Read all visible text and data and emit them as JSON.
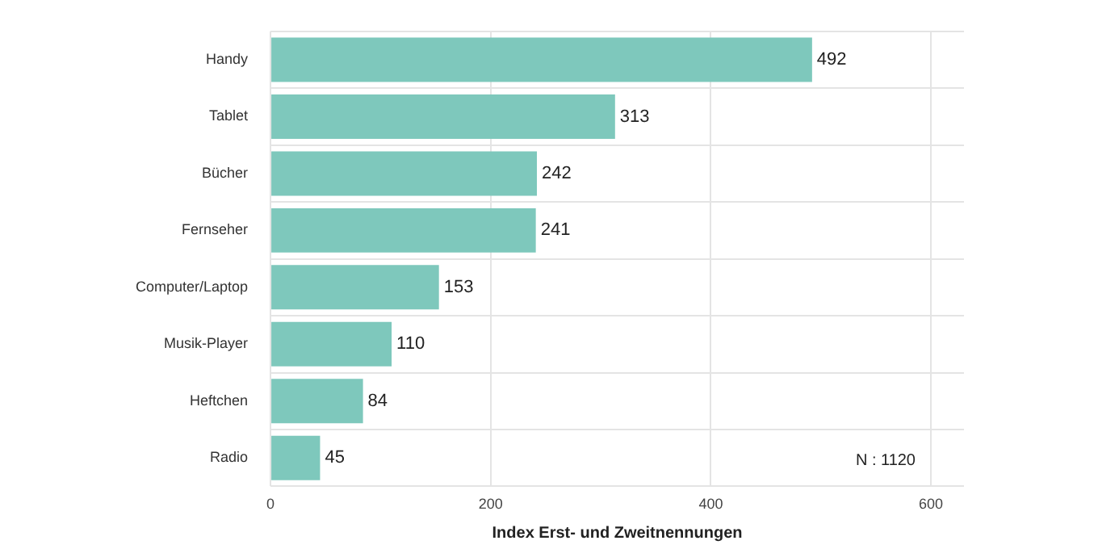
{
  "chart_data": {
    "type": "bar",
    "orientation": "horizontal",
    "xlabel": "Index Erst- und Zweitnennungen",
    "categories": [
      "Handy",
      "Tablet",
      "Bücher",
      "Fernseher",
      "Computer/Laptop",
      "Musik-Player",
      "Heftchen",
      "Radio"
    ],
    "values": [
      492,
      313,
      242,
      241,
      153,
      110,
      84,
      45
    ],
    "color": "#7ec8bc",
    "xlim": [
      0,
      630
    ],
    "xticks": [
      0,
      200,
      400,
      600
    ],
    "grid": true,
    "data_labels": true,
    "legend": false,
    "annotations": [
      "N : 1120"
    ]
  }
}
